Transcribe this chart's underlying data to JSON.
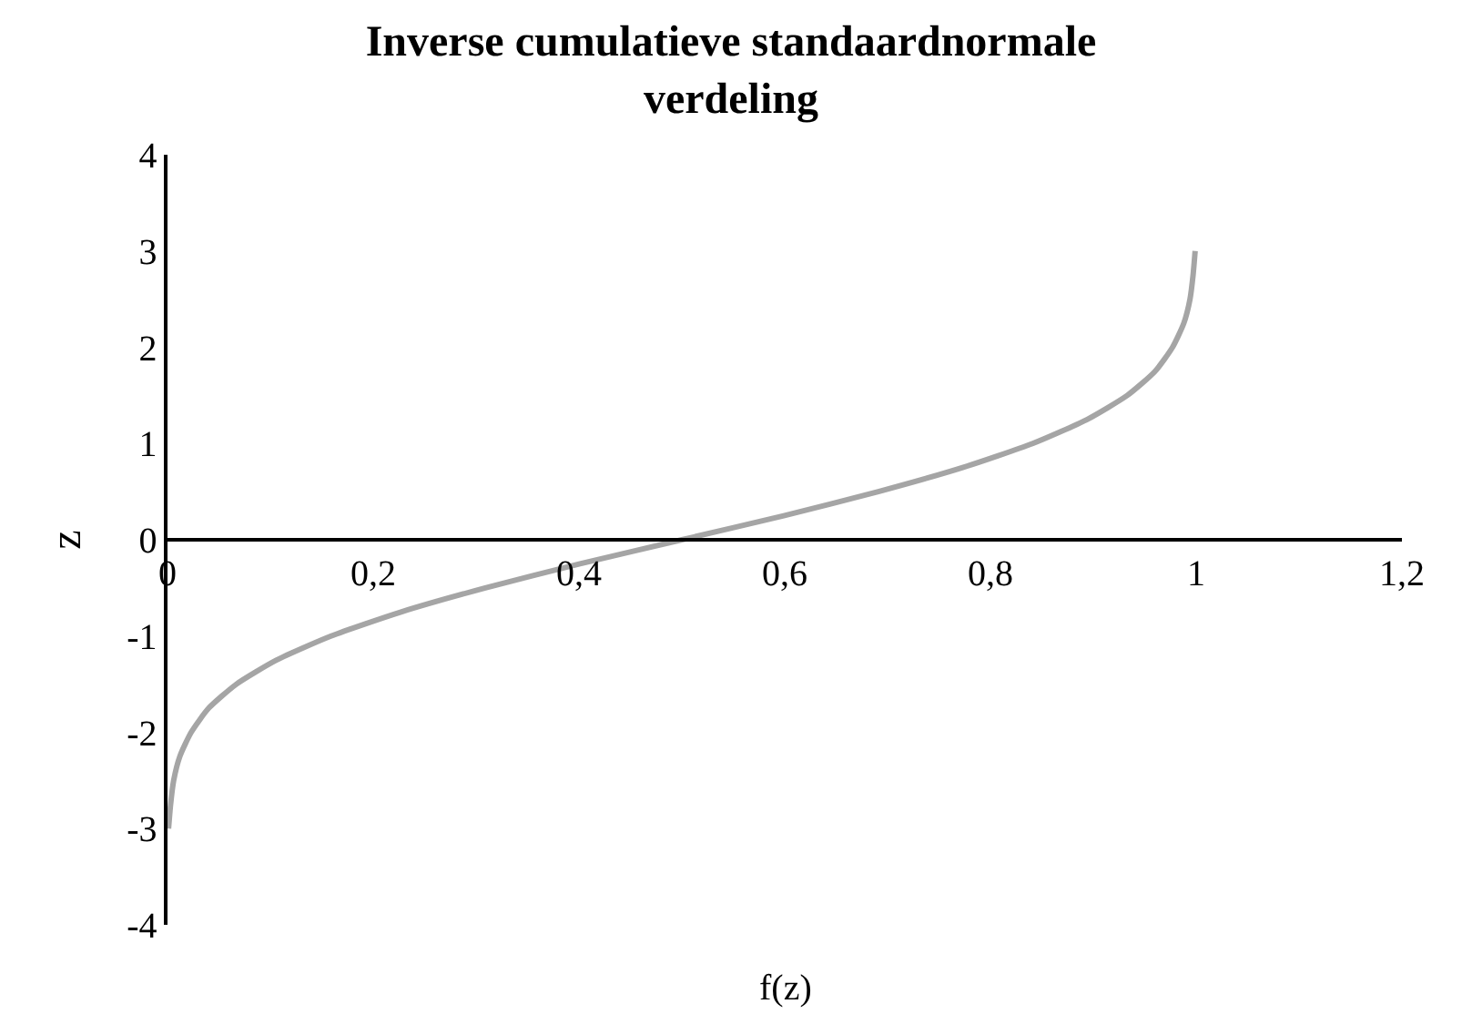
{
  "chart_data": {
    "type": "line",
    "title": "Inverse cumulatieve standaardnormale verdeling",
    "xlabel": "f(z)",
    "ylabel": "z",
    "x": [
      0.001,
      0.003,
      0.006,
      0.012,
      0.023,
      0.04,
      0.067,
      0.106,
      0.159,
      0.227,
      0.309,
      0.401,
      0.5,
      0.599,
      0.691,
      0.773,
      0.841,
      0.894,
      0.933,
      0.96,
      0.977,
      0.988,
      0.994,
      0.997,
      0.999
    ],
    "series": [
      {
        "color": "#a5a5a5",
        "values": [
          -3,
          -2.75,
          -2.5,
          -2.25,
          -2,
          -1.75,
          -1.5,
          -1.25,
          -1,
          -0.75,
          -0.5,
          -0.25,
          0,
          0.25,
          0.5,
          0.75,
          1,
          1.25,
          1.5,
          1.75,
          2,
          2.25,
          2.5,
          2.75,
          3
        ]
      }
    ],
    "xlim": [
      0,
      1.2
    ],
    "xticks": [
      0,
      {
        "value": 0.2,
        "label": "0,2"
      },
      {
        "value": 0.4,
        "label": "0,4"
      },
      {
        "value": 0.6,
        "label": "0,6"
      },
      {
        "value": 0.8,
        "label": "0,8"
      },
      1,
      {
        "value": 1.2,
        "label": "1,2"
      }
    ],
    "ylim": [
      -4,
      4
    ],
    "yticks": [
      -4,
      -3,
      -2,
      -1,
      0,
      1,
      2,
      3,
      4
    ],
    "marker": "none",
    "line_style": "solid"
  }
}
